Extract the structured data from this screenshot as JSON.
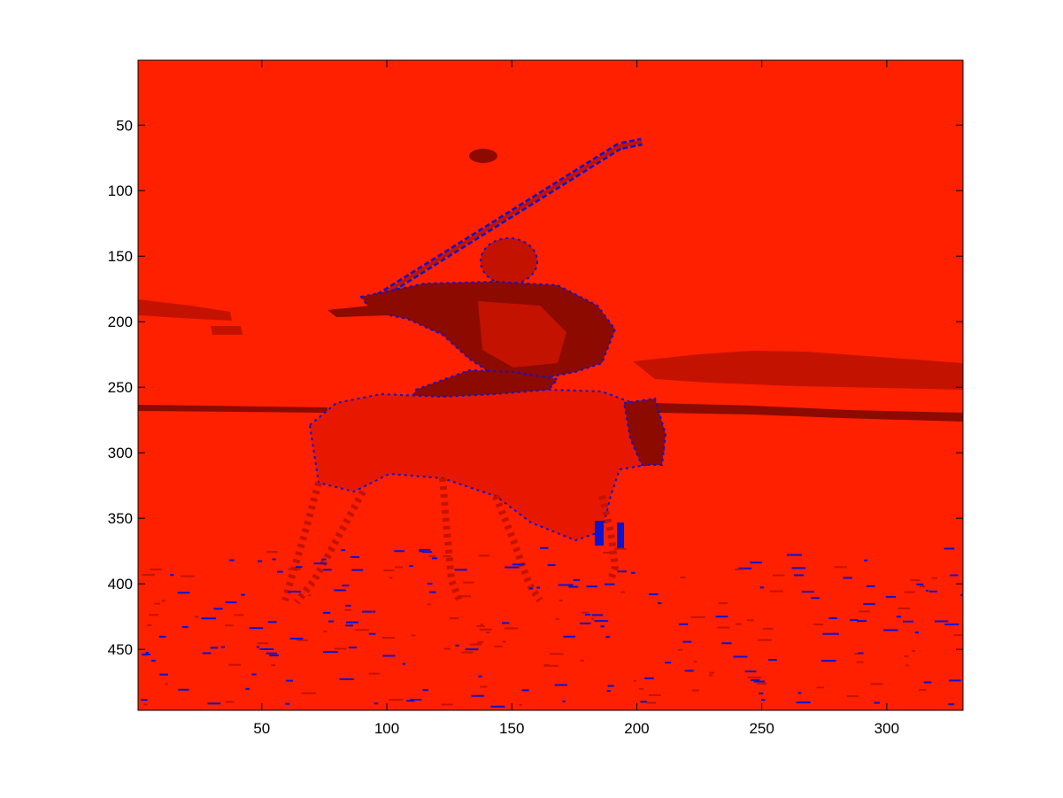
{
  "chart_data": {
    "type": "heatmap",
    "title": "",
    "xlabel": "",
    "ylabel": "",
    "xlim": [
      0.5,
      330.5
    ],
    "ylim": [
      0.5,
      496.5
    ],
    "y_direction": "reverse",
    "x_ticks": [
      50,
      100,
      150,
      200,
      250,
      300
    ],
    "x_tick_labels": [
      "50",
      "100",
      "150",
      "200",
      "250",
      "300"
    ],
    "y_ticks": [
      50,
      100,
      150,
      200,
      250,
      300,
      350,
      400,
      450
    ],
    "y_tick_labels": [
      "50",
      "100",
      "150",
      "200",
      "250",
      "300",
      "350",
      "400",
      "450"
    ],
    "grid": false,
    "legend": "none",
    "image_content": "clustered color image of a polo player on horseback swinging a mallet",
    "colors": {
      "background_cluster": "#ff2000",
      "dark_cluster": "#8c0a00",
      "mid_cluster": "#c41200",
      "edge_cluster": "#0a14d2",
      "axes": "#000000",
      "figure_background": "#ffffff"
    }
  }
}
